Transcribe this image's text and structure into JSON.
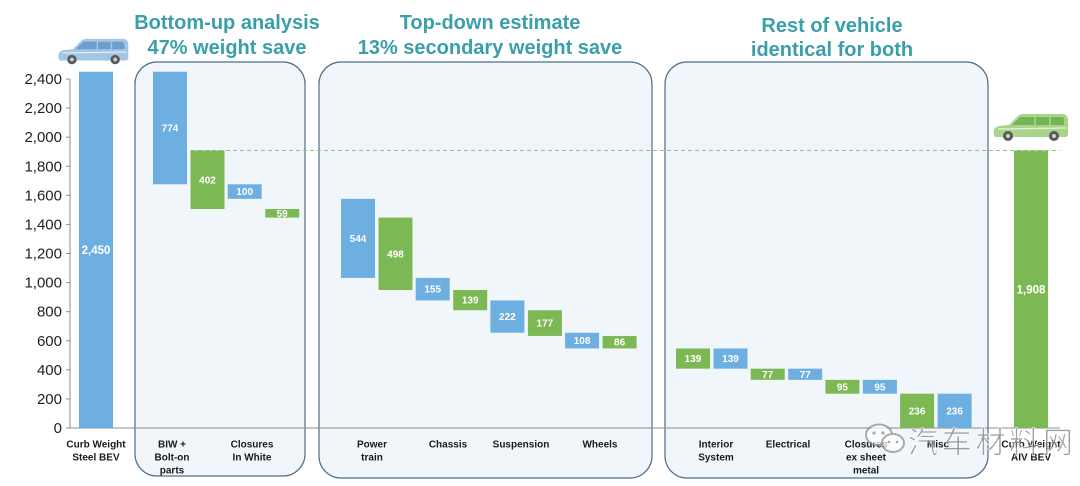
{
  "chart_data": {
    "type": "bar",
    "ylim": [
      0,
      2400
    ],
    "yticks": [
      0,
      200,
      400,
      600,
      800,
      1000,
      1200,
      1400,
      1600,
      1800,
      2000,
      2200,
      2400
    ],
    "grid": false,
    "colors": {
      "steel": "#6eafe2",
      "aiv": "#7cb955",
      "header": "#3a9fa9",
      "panel_border": "#4e6d8c",
      "panel_fill": "#f0f6fa",
      "reference_line": "#8fc47a"
    },
    "start": {
      "label": [
        "Curb Weight",
        "Steel BEV"
      ],
      "value": 2450,
      "icon": "van-icon"
    },
    "end": {
      "label": [
        "Curb Weight",
        "AIV BEV"
      ],
      "value": 1908,
      "icon": "van-icon"
    },
    "reference_line": {
      "value": 1908,
      "dashed": true
    },
    "groups": [
      {
        "header": [
          "Bottom-up analysis",
          "47% weight save"
        ],
        "aiv_first": false,
        "categories": [
          {
            "label": [
              "BIW +",
              "Bolt-on",
              "parts"
            ],
            "steel": 774,
            "aiv": 402
          },
          {
            "label": [
              "Closures",
              "In White"
            ],
            "steel": 100,
            "aiv": 59
          }
        ]
      },
      {
        "header": [
          "Top-down estimate",
          "13% secondary weight save"
        ],
        "aiv_first": false,
        "categories": [
          {
            "label": [
              "Power",
              "train"
            ],
            "steel": 544,
            "aiv": 498
          },
          {
            "label": [
              "Chassis"
            ],
            "steel": 155,
            "aiv": 139
          },
          {
            "label": [
              "Suspension"
            ],
            "steel": 222,
            "aiv": 177
          },
          {
            "label": [
              "Wheels"
            ],
            "steel": 108,
            "aiv": 86
          }
        ]
      },
      {
        "header": [
          "Rest of vehicle",
          "identical for both"
        ],
        "aiv_first": true,
        "categories": [
          {
            "label": [
              "Interior",
              "System"
            ],
            "steel": 139,
            "aiv": 139
          },
          {
            "label": [
              "Electrical"
            ],
            "steel": 77,
            "aiv": 77
          },
          {
            "label": [
              "Closures",
              "ex sheet",
              "metal"
            ],
            "steel": 95,
            "aiv": 95
          },
          {
            "label": [
              "Misc"
            ],
            "steel": 236,
            "aiv": 236
          }
        ]
      }
    ]
  },
  "watermark": {
    "text": "汽车材料网",
    "icon": "wechat-icon"
  }
}
